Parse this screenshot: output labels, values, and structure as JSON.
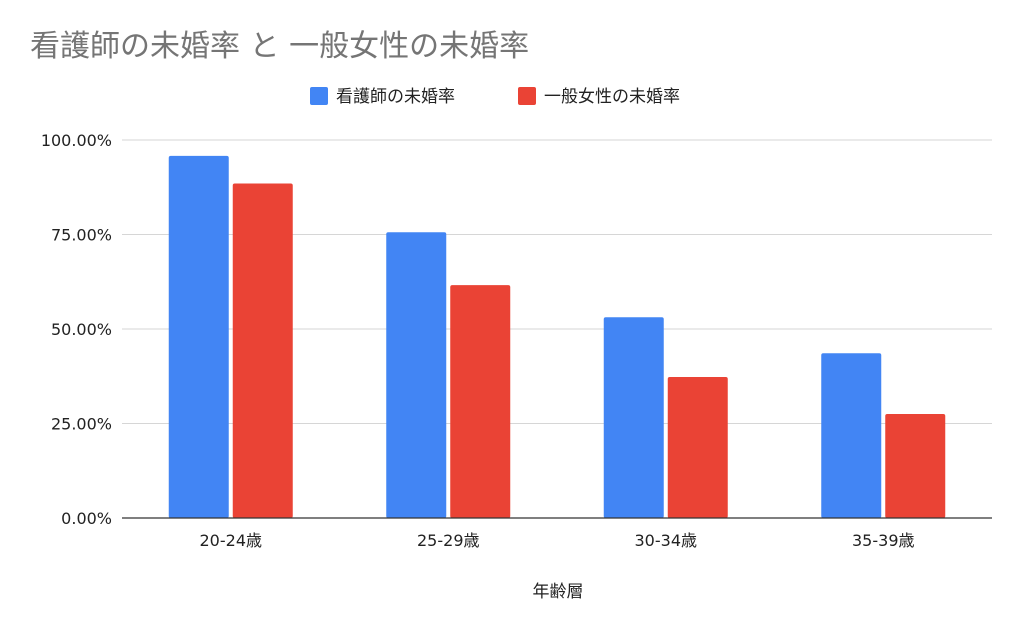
{
  "chart_data": {
    "type": "bar",
    "title": "看護師の未婚率 と 一般女性の未婚率",
    "xlabel": "年齢層",
    "ylabel": "",
    "categories": [
      "20-24歳",
      "25-29歳",
      "30-34歳",
      "35-39歳"
    ],
    "series": [
      {
        "name": "看護師の未婚率",
        "color": "#4285f4",
        "values": [
          95.8,
          75.6,
          53.1,
          43.6
        ]
      },
      {
        "name": "一般女性の未婚率",
        "color": "#ea4335",
        "values": [
          88.5,
          61.6,
          37.3,
          27.5
        ]
      }
    ],
    "ylim": [
      0,
      100
    ],
    "yticks": [
      0,
      25,
      50,
      75,
      100
    ],
    "ytick_labels": [
      "0.00%",
      "25.00%",
      "50.00%",
      "75.00%",
      "100.00%"
    ],
    "grid": true,
    "legend_position": "top-center"
  }
}
